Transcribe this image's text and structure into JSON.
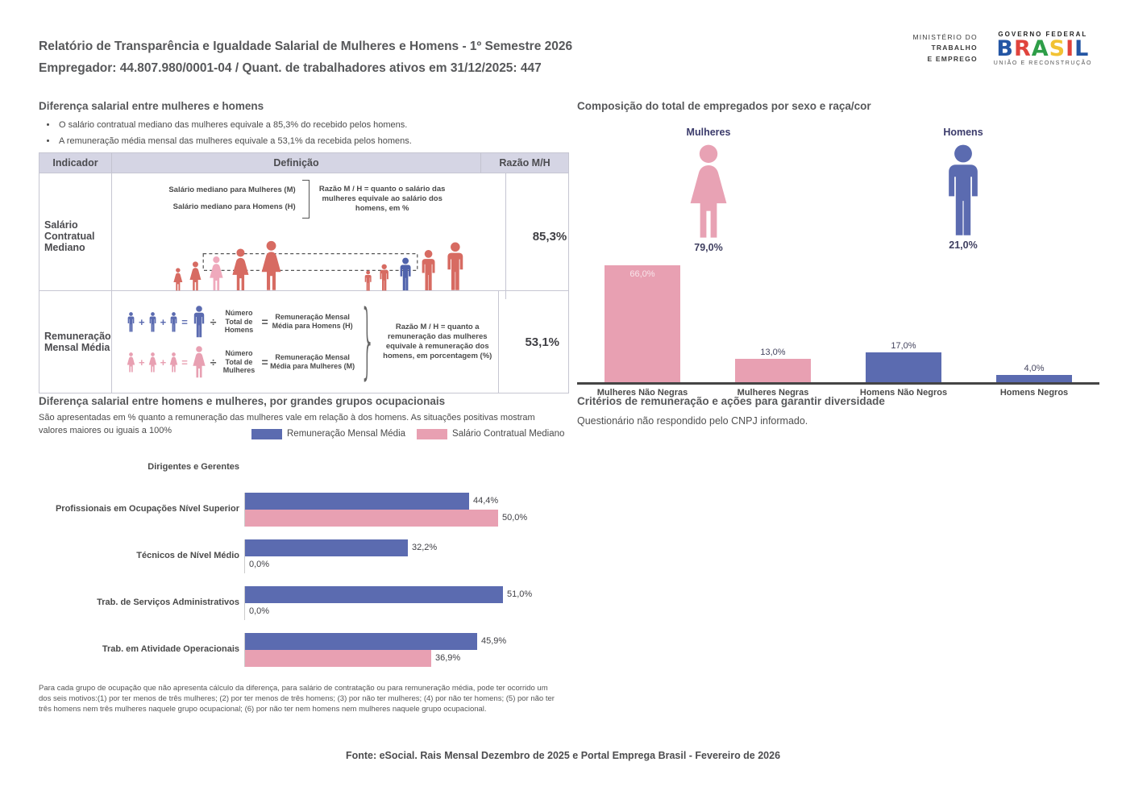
{
  "header": {
    "title_line1": "Relatório de Transparência e Igualdade Salarial de Mulheres e Homens - 1º Semestre 2026",
    "title_line2": "Empregador: 44.807.980/0001-04 / Quant. de trabalhadores ativos em 31/12/2025: 447",
    "ministry": {
      "line1": "MINISTÉRIO DO",
      "line2": "TRABALHO",
      "line3": "E EMPREGO"
    },
    "gov_logo": {
      "top": "GOVERNO FEDERAL",
      "bottom": "UNIÃO E RECONSTRUÇÃO",
      "letters": [
        "B",
        "R",
        "A",
        "S",
        "I",
        "L"
      ]
    }
  },
  "salary_diff": {
    "title": "Diferença salarial entre mulheres e homens",
    "bullets": [
      "O salário contratual mediano das mulheres equivale a 85,3% do recebido pelos homens.",
      "A remuneração média mensal das mulheres equivale a 53,1% da recebida pelos homens."
    ],
    "table": {
      "headers": [
        "Indicador",
        "Definição",
        "Razão M/H"
      ],
      "row1": {
        "indicator": "Salário Contratual Mediano",
        "def_line1": "Salário mediano para Mulheres (M)",
        "def_line2": "Salário mediano para Homens (H)",
        "note": "Razão M / H = quanto o salário das mulheres equivale ao salário dos homens, em %",
        "ratio": "85,3%"
      },
      "row2": {
        "indicator": "Remuneração Mensal Média",
        "men_divisor": "Número Total de Homens",
        "men_result": "Remuneração Mensal Média para Homens (H)",
        "women_divisor": "Número Total de Mulheres",
        "women_result": "Remuneração Mensal Média para Mulheres (M)",
        "note": "Razão M / H = quanto a remuneração das mulheres equivale à remuneração dos homens, em porcentagem (%)",
        "ratio": "53,1%"
      }
    },
    "ops": {
      "plus": "+",
      "equals": "=",
      "divide": "÷",
      "brace": "}"
    }
  },
  "composition": {
    "title": "Composição do total de empregados por sexo e raça/cor",
    "women_label": "Mulheres",
    "women_pct": "79,0%",
    "men_label": "Homens",
    "men_pct": "21,0%"
  },
  "occupational": {
    "title": "Diferença salarial entre homens e mulheres, por grandes grupos ocupacionais",
    "subtitle": "São apresentadas em % quanto a remuneração das mulheres vale em relação à dos homens. As situações positivas mostram valores maiores ou iguais a 100%",
    "legend": [
      {
        "label": "Remuneração Mensal Média",
        "color": "#5b6bb0"
      },
      {
        "label": "Salário Contratual Mediano",
        "color": "#e8a0b2"
      }
    ],
    "footnote": "Para cada grupo de ocupação que não apresenta cálculo da diferença, para salário de contratação ou para remuneração média, pode ter ocorrido um dos seis motivos:(1) por ter menos de três mulheres; (2) por ter menos de três homens; (3) por não ter mulheres; (4) por não ter homens; (5) por não ter três homens nem três mulheres naquele grupo ocupacional; (6) por não ter nem homens nem mulheres naquele grupo ocupacional."
  },
  "criteria": {
    "title": "Critérios de remuneração e ações para garantir diversidade",
    "text": "Questionário não respondido pelo CNPJ informado."
  },
  "footer": {
    "source": "Fonte: eSocial. Rais Mensal Dezembro de 2025 e Portal Emprega Brasil - Fevereiro de 2026"
  },
  "colors": {
    "blue": "#5b6bb0",
    "pink": "#e8a0b2",
    "figure_red": "#d76b62",
    "figure_pink_highlight": "#efa9bc",
    "figure_blue_highlight": "#4f62ab",
    "navy_label": "#3b3b6b",
    "table_header_bg": "#d5d5e4",
    "title_gray": "#57585a"
  },
  "chart_data": [
    {
      "type": "bar",
      "title": "Composição do total de empregados por sexo e raça/cor",
      "categories": [
        "Mulheres Não Negras",
        "Mulheres Negras",
        "Homens Não Negros",
        "Homens Negros"
      ],
      "values": [
        66.0,
        13.0,
        17.0,
        4.0
      ],
      "value_labels": [
        "66,0%",
        "13,0%",
        "17,0%",
        "4,0%"
      ],
      "bar_colors": [
        "#e8a0b2",
        "#e8a0b2",
        "#5b6bb0",
        "#5b6bb0"
      ],
      "ylim": [
        0,
        70
      ],
      "grid": false,
      "annotations": {
        "women_total_pct": 79.0,
        "men_total_pct": 21.0
      }
    },
    {
      "type": "bar",
      "orientation": "horizontal",
      "title": "Diferença salarial entre homens e mulheres, por grandes grupos ocupacionais",
      "categories": [
        "Dirigentes e Gerentes",
        "Profissionais em Ocupações Nível Superior",
        "Técnicos de Nível Médio",
        "Trab. de Serviços Administrativos",
        "Trab. em Atividade Operacionais"
      ],
      "series": [
        {
          "name": "Remuneração Mensal Média",
          "color": "#5b6bb0",
          "values": [
            null,
            44.4,
            32.2,
            51.0,
            45.9
          ],
          "labels": [
            null,
            "44,4%",
            "32,2%",
            "51,0%",
            "45,9%"
          ]
        },
        {
          "name": "Salário Contratual Mediano",
          "color": "#e8a0b2",
          "values": [
            null,
            50.0,
            0.0,
            0.0,
            36.9
          ],
          "labels": [
            null,
            "50,0%",
            "0,0%",
            "0,0%",
            "36,9%"
          ]
        }
      ],
      "xlim": [
        0,
        55
      ],
      "legend_position": "top",
      "grid": false
    }
  ]
}
